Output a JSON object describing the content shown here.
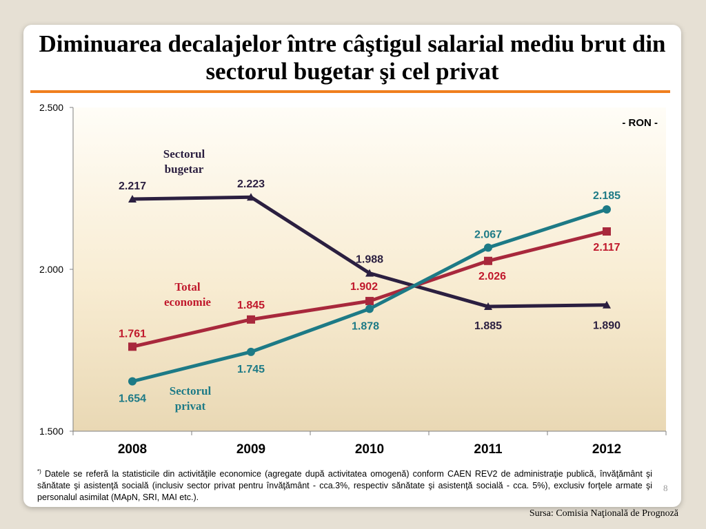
{
  "title": "Diminuarea decalajelor între câştigul salarial mediu brut din sectorul bugetar şi cel privat",
  "unit_label": "- RON -",
  "footnote": {
    "marker": "*)",
    "text": "Datele se referă la statisticile din activităţile economice (agregate după activitatea omogenă) conform CAEN REV2 de administraţie publică, învăţământ şi sănătate şi asistenţă socială (inclusiv sector privat pentru învăţământ - cca.3%, respectiv sănătate şi asistenţă socială - cca. 5%), exclusiv forţele armate şi personalul asimilat (MApN, SRI, MAI etc.)."
  },
  "page_number": "8",
  "source": "Sursa: Comisia Naţională de Prognoză",
  "chart_data": {
    "type": "line",
    "categories": [
      "2008",
      "2009",
      "2010",
      "2011",
      "2012"
    ],
    "ylim": [
      1500,
      2500
    ],
    "yticks": [
      1500,
      2000,
      2500
    ],
    "ytick_labels": [
      "1.500",
      "2.000",
      "2.500"
    ],
    "grid": false,
    "series": [
      {
        "name": "Sectorul bugetar",
        "name_lines": [
          "Sectorul",
          "bugetar"
        ],
        "color": "#2b1f40",
        "label_color": "#2b1f40",
        "marker": "triangle",
        "values": [
          2217,
          2223,
          1988,
          1885,
          1890
        ],
        "labels": [
          "2.217",
          "2.223",
          "1.988",
          "1.885",
          "1.890"
        ]
      },
      {
        "name": "Total economie",
        "name_lines": [
          "Total",
          "economie"
        ],
        "color": "#a8283c",
        "label_color": "#c0182c",
        "marker": "square",
        "values": [
          1761,
          1845,
          1902,
          2026,
          2117
        ],
        "labels": [
          "1.761",
          "1.845",
          "1.902",
          "2.026",
          "2.117"
        ]
      },
      {
        "name": "Sectorul privat",
        "name_lines": [
          "Sectorul",
          "privat"
        ],
        "color": "#1d7a86",
        "label_color": "#1d7a86",
        "marker": "circle",
        "values": [
          1654,
          1745,
          1878,
          2067,
          2185
        ],
        "labels": [
          "1.654",
          "1.745",
          "1.878",
          "2.067",
          "2.185"
        ]
      }
    ]
  }
}
